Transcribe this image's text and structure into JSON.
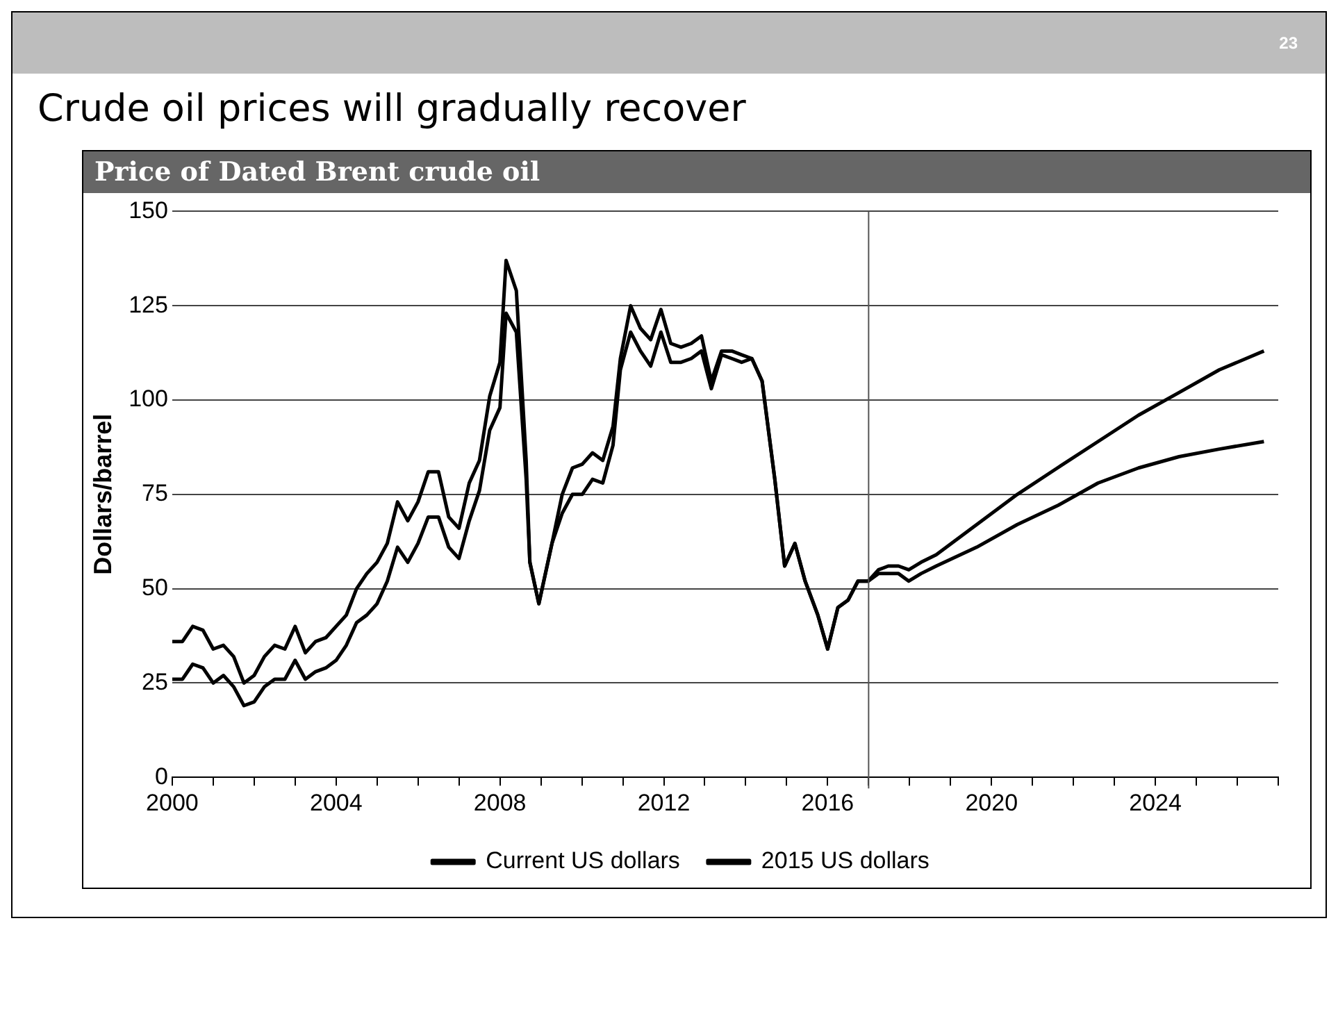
{
  "chart_data": {
    "type": "line",
    "title": "Crude oil prices will gradually recover",
    "subtitle": "Price of Dated Brent crude oil",
    "ylabel": "Dollars/barrel",
    "annotations": [
      "23"
    ],
    "series": [
      {
        "name": "Current US dollars",
        "color": "#000000",
        "x": [
          2000,
          2000.25,
          2000.5,
          2000.75,
          2001,
          2001.25,
          2001.5,
          2001.75,
          2002,
          2002.25,
          2002.5,
          2002.75,
          2003,
          2003.25,
          2003.5,
          2003.75,
          2004,
          2004.25,
          2004.5,
          2004.75,
          2005,
          2005.25,
          2005.5,
          2005.75,
          2006,
          2006.25,
          2006.5,
          2006.75,
          2007,
          2007.25,
          2007.5,
          2007.75,
          2008,
          2008.15,
          2008.4,
          2008.64,
          2008.73,
          2008.95,
          2009.27,
          2009.52,
          2009.77,
          2010.01,
          2010.26,
          2010.51,
          2010.76,
          2010.94,
          2011.19,
          2011.43,
          2011.68,
          2011.93,
          2012.17,
          2012.42,
          2012.67,
          2012.92,
          2013.16,
          2013.41,
          2013.66,
          2013.9,
          2014.15,
          2014.4,
          2014.71,
          2014.95,
          2015.2,
          2015.45,
          2015.76,
          2016,
          2016.25,
          2016.5,
          2016.74,
          2016.99,
          2017.24,
          2017.48,
          2017.73,
          2017.98,
          2018.28,
          2018.65,
          2019.64,
          2020.63,
          2021.61,
          2022.6,
          2023.59,
          2024.58,
          2025.56,
          2026.65
        ],
        "values": [
          26,
          26,
          30,
          29,
          25,
          27,
          24,
          19,
          20,
          24,
          26,
          26,
          31,
          26,
          28,
          29,
          31,
          35,
          41,
          43,
          46,
          52,
          61,
          57,
          62,
          69,
          69,
          61,
          58,
          68,
          76,
          92,
          98,
          123,
          118,
          79,
          57,
          46,
          62,
          70,
          75,
          75,
          79,
          78,
          88,
          108,
          118,
          113,
          109,
          118,
          110,
          110,
          111,
          113,
          103,
          112,
          111,
          110,
          111,
          105,
          79,
          56,
          62,
          52,
          43,
          34,
          45,
          47,
          52,
          52,
          55,
          56,
          56,
          55,
          57,
          59,
          67,
          75,
          82,
          89,
          96,
          102,
          108,
          113
        ]
      },
      {
        "name": "2015 US dollars",
        "color": "#000000",
        "x": [
          2000,
          2000.25,
          2000.5,
          2000.75,
          2001,
          2001.25,
          2001.5,
          2001.75,
          2002,
          2002.25,
          2002.5,
          2002.75,
          2003,
          2003.25,
          2003.5,
          2003.75,
          2004,
          2004.25,
          2004.5,
          2004.75,
          2005,
          2005.25,
          2005.5,
          2005.75,
          2006,
          2006.25,
          2006.5,
          2006.75,
          2007,
          2007.25,
          2007.5,
          2007.75,
          2008,
          2008.15,
          2008.4,
          2008.64,
          2008.73,
          2008.95,
          2009.27,
          2009.52,
          2009.77,
          2010.01,
          2010.26,
          2010.51,
          2010.76,
          2010.94,
          2011.19,
          2011.43,
          2011.68,
          2011.93,
          2012.17,
          2012.42,
          2012.67,
          2012.92,
          2013.16,
          2013.41,
          2013.66,
          2013.9,
          2014.15,
          2014.4,
          2014.71,
          2014.95,
          2015.2,
          2015.45,
          2015.76,
          2016,
          2016.25,
          2016.5,
          2016.74,
          2016.99,
          2017.24,
          2017.48,
          2017.73,
          2017.98,
          2018.28,
          2018.65,
          2019.64,
          2020.63,
          2021.61,
          2022.6,
          2023.59,
          2024.58,
          2025.56,
          2026.65
        ],
        "values": [
          36,
          36,
          40,
          39,
          34,
          35,
          32,
          25,
          27,
          32,
          35,
          34,
          40,
          33,
          36,
          37,
          40,
          43,
          50,
          54,
          57,
          62,
          73,
          68,
          73,
          81,
          81,
          69,
          66,
          78,
          84,
          101,
          110,
          137,
          129,
          84,
          57,
          46,
          62,
          75,
          82,
          83,
          86,
          84,
          93,
          111,
          125,
          119,
          116,
          124,
          115,
          114,
          115,
          117,
          105,
          113,
          113,
          112,
          111,
          105,
          79,
          56,
          62,
          52,
          43,
          34,
          45,
          47,
          52,
          52,
          54,
          54,
          54,
          52,
          54,
          56,
          61,
          67,
          72,
          78,
          82,
          85,
          87,
          89
        ]
      }
    ],
    "xlim": [
      2000,
      2027
    ],
    "xticks": [
      2000,
      {
        "value": 2001,
        "label": null
      },
      {
        "value": 2002,
        "label": null
      },
      {
        "value": 2003,
        "label": null
      },
      2004,
      {
        "value": 2005,
        "label": null
      },
      {
        "value": 2006,
        "label": null
      },
      {
        "value": 2007,
        "label": null
      },
      2008,
      {
        "value": 2009,
        "label": null
      },
      {
        "value": 2010,
        "label": null
      },
      {
        "value": 2011,
        "label": null
      },
      2012,
      {
        "value": 2013,
        "label": null
      },
      {
        "value": 2014,
        "label": null
      },
      {
        "value": 2015,
        "label": null
      },
      2016,
      {
        "value": 2017,
        "label": null
      },
      {
        "value": 2018,
        "label": null
      },
      {
        "value": 2019,
        "label": null
      },
      2020,
      {
        "value": 2021,
        "label": null
      },
      {
        "value": 2022,
        "label": null
      },
      {
        "value": 2023,
        "label": null
      },
      2024,
      {
        "value": 2025,
        "label": null
      },
      {
        "value": 2026,
        "label": null
      },
      {
        "value": 2027,
        "label": null
      }
    ],
    "ylim": [
      0,
      150
    ],
    "yticks": [
      0,
      25,
      50,
      75,
      100,
      125,
      150
    ],
    "ref_lines": [
      {
        "axis": "x",
        "value": 2017,
        "color": "#555555"
      }
    ],
    "grid": "y",
    "legend": "bottom",
    "marker": "none",
    "line_style": "solid"
  }
}
